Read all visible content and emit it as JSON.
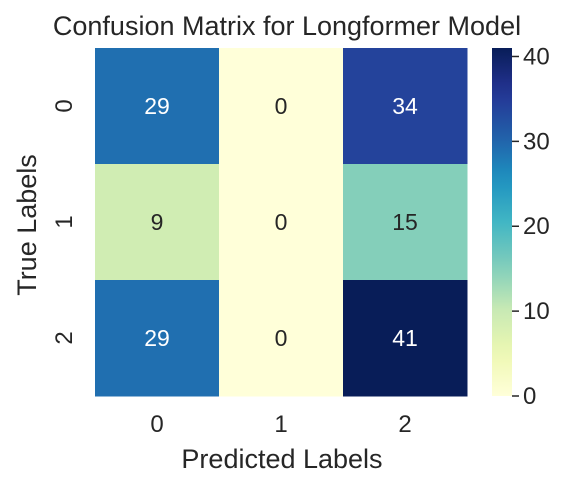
{
  "chart_data": {
    "type": "heatmap",
    "title": "Confusion Matrix for Longformer Model",
    "xlabel": "Predicted Labels",
    "ylabel": "True Labels",
    "x_categories": [
      "0",
      "1",
      "2"
    ],
    "y_categories": [
      "0",
      "1",
      "2"
    ],
    "values": [
      [
        29,
        0,
        34
      ],
      [
        9,
        0,
        15
      ],
      [
        29,
        0,
        41
      ]
    ],
    "colormap": "YlGnBu",
    "colorbar": {
      "range": [
        0,
        41
      ],
      "ticks": [
        0,
        10,
        20,
        30,
        40
      ]
    },
    "annotation_text_colors": {
      "dark_cell": "#ffffff",
      "light_cell": "#262626"
    }
  }
}
